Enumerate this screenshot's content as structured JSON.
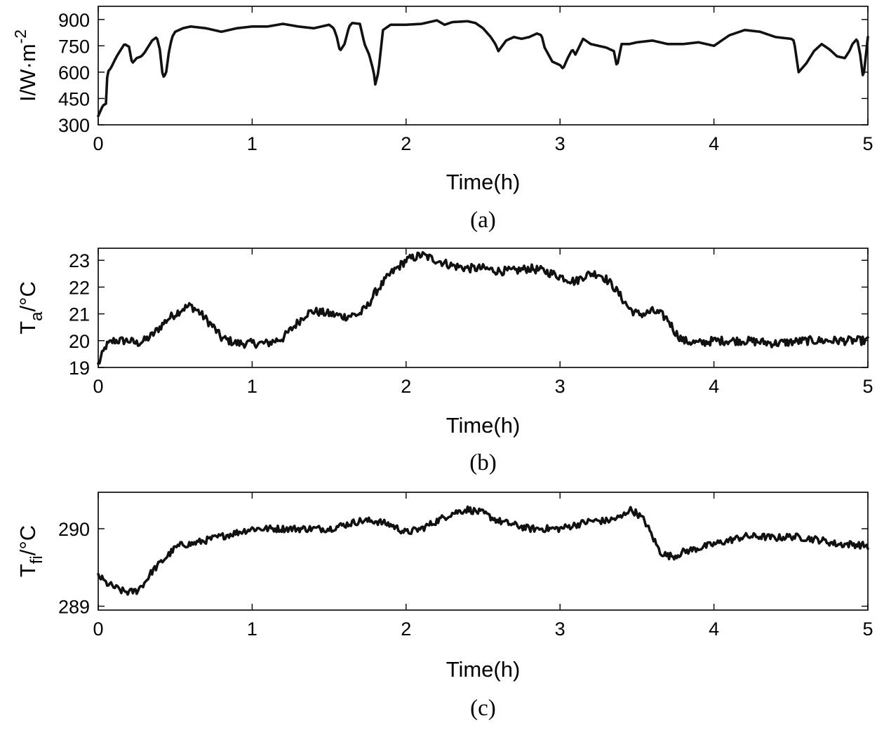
{
  "figure": {
    "background": "#ffffff",
    "line_color": "#111111"
  },
  "chart_data": [
    {
      "type": "line",
      "panel_label": "(a)",
      "xlabel": "Time(h)",
      "ylabel": "I/W·m",
      "ylabel_superscript": "-2",
      "xlim": [
        0,
        5
      ],
      "ylim": [
        300,
        975
      ],
      "xticks": [
        0,
        1,
        2,
        3,
        4,
        5
      ],
      "yticks": [
        300,
        450,
        600,
        750,
        900
      ],
      "grid": false,
      "noise": 0,
      "series": [
        {
          "x": [
            0,
            0.03,
            0.05,
            0.06,
            0.08,
            0.12,
            0.17,
            0.2,
            0.22,
            0.25,
            0.28,
            0.3,
            0.35,
            0.38,
            0.4,
            0.42,
            0.44,
            0.46,
            0.48,
            0.5,
            0.55,
            0.6,
            0.7,
            0.8,
            0.85,
            0.9,
            1.0,
            1.1,
            1.2,
            1.3,
            1.4,
            1.5,
            1.53,
            1.55,
            1.57,
            1.6,
            1.63,
            1.65,
            1.7,
            1.73,
            1.76,
            1.79,
            1.8,
            1.82,
            1.85,
            1.9,
            2.0,
            2.1,
            2.2,
            2.25,
            2.3,
            2.4,
            2.45,
            2.5,
            2.55,
            2.58,
            2.6,
            2.65,
            2.7,
            2.75,
            2.8,
            2.85,
            2.88,
            2.9,
            2.95,
            3.0,
            3.02,
            3.05,
            3.08,
            3.1,
            3.15,
            3.2,
            3.3,
            3.35,
            3.37,
            3.4,
            3.45,
            3.5,
            3.6,
            3.7,
            3.8,
            3.9,
            4.0,
            4.1,
            4.2,
            4.3,
            4.4,
            4.5,
            4.52,
            4.55,
            4.6,
            4.65,
            4.7,
            4.75,
            4.8,
            4.85,
            4.88,
            4.9,
            4.93,
            4.95,
            4.97,
            5.0
          ],
          "y": [
            350,
            410,
            420,
            600,
            620,
            690,
            760,
            745,
            650,
            680,
            690,
            710,
            780,
            800,
            730,
            570,
            590,
            720,
            800,
            830,
            850,
            860,
            850,
            830,
            840,
            850,
            860,
            860,
            875,
            860,
            850,
            870,
            850,
            800,
            720,
            760,
            860,
            880,
            875,
            760,
            700,
            600,
            530,
            600,
            840,
            870,
            870,
            875,
            895,
            870,
            885,
            890,
            880,
            850,
            800,
            760,
            720,
            780,
            800,
            790,
            800,
            820,
            810,
            740,
            660,
            640,
            620,
            680,
            730,
            700,
            790,
            760,
            740,
            720,
            630,
            760,
            760,
            770,
            780,
            760,
            760,
            770,
            750,
            810,
            840,
            830,
            800,
            790,
            780,
            600,
            650,
            720,
            760,
            730,
            690,
            680,
            720,
            760,
            790,
            700,
            560,
            800
          ]
        }
      ]
    },
    {
      "type": "line",
      "panel_label": "(b)",
      "xlabel": "Time(h)",
      "ylabel": "T",
      "ylabel_subscript": "a",
      "ylabel_suffix": "/°C",
      "xlim": [
        0,
        5
      ],
      "ylim": [
        19,
        23.45
      ],
      "xticks": [
        0,
        1,
        2,
        3,
        4,
        5
      ],
      "yticks": [
        19,
        20,
        21,
        22,
        23
      ],
      "grid": false,
      "noise": 0.16,
      "series": [
        {
          "x": [
            0,
            0.05,
            0.1,
            0.15,
            0.2,
            0.25,
            0.3,
            0.35,
            0.4,
            0.45,
            0.5,
            0.55,
            0.6,
            0.65,
            0.7,
            0.75,
            0.8,
            0.9,
            1.0,
            1.1,
            1.15,
            1.2,
            1.25,
            1.3,
            1.35,
            1.4,
            1.5,
            1.6,
            1.7,
            1.75,
            1.8,
            1.9,
            2.0,
            2.1,
            2.2,
            2.3,
            2.4,
            2.5,
            2.6,
            2.7,
            2.8,
            2.9,
            3.0,
            3.05,
            3.1,
            3.15,
            3.2,
            3.25,
            3.3,
            3.35,
            3.4,
            3.45,
            3.5,
            3.55,
            3.6,
            3.65,
            3.7,
            3.75,
            3.8,
            3.9,
            4.0,
            4.2,
            4.4,
            4.6,
            4.8,
            5.0
          ],
          "y": [
            19.1,
            19.8,
            20.0,
            20.0,
            20.0,
            19.9,
            20.0,
            20.2,
            20.5,
            20.8,
            21.0,
            21.2,
            21.3,
            21.1,
            20.8,
            20.5,
            20.1,
            19.9,
            19.9,
            19.9,
            20.0,
            20.1,
            20.4,
            20.7,
            21.0,
            21.1,
            21.0,
            20.9,
            21.0,
            21.3,
            21.8,
            22.5,
            23.0,
            23.2,
            23.0,
            22.8,
            22.7,
            22.7,
            22.6,
            22.6,
            22.7,
            22.6,
            22.4,
            22.3,
            22.2,
            22.4,
            22.5,
            22.5,
            22.3,
            22.0,
            21.6,
            21.2,
            21.0,
            21.0,
            21.1,
            21.0,
            20.8,
            20.3,
            20.0,
            19.9,
            20.0,
            20.0,
            19.9,
            20.0,
            20.0,
            20.0
          ]
        }
      ]
    },
    {
      "type": "line",
      "panel_label": "(c)",
      "xlabel": "Time(h)",
      "ylabel": "T",
      "ylabel_subscript": "fi",
      "ylabel_suffix": "/°C",
      "xlim": [
        0,
        5
      ],
      "ylim": [
        288.95,
        290.47
      ],
      "xticks": [
        0,
        1,
        2,
        3,
        4,
        5
      ],
      "yticks": [
        289,
        290
      ],
      "grid": false,
      "noise": 0.045,
      "series": [
        {
          "x": [
            0,
            0.05,
            0.1,
            0.15,
            0.2,
            0.25,
            0.3,
            0.35,
            0.4,
            0.45,
            0.5,
            0.55,
            0.6,
            0.7,
            0.8,
            0.9,
            1.0,
            1.2,
            1.4,
            1.5,
            1.6,
            1.7,
            1.8,
            1.9,
            2.0,
            2.1,
            2.2,
            2.3,
            2.4,
            2.5,
            2.6,
            2.7,
            2.8,
            2.9,
            3.0,
            3.1,
            3.2,
            3.3,
            3.4,
            3.45,
            3.5,
            3.55,
            3.6,
            3.65,
            3.7,
            3.75,
            3.8,
            3.9,
            4.0,
            4.1,
            4.2,
            4.3,
            4.4,
            4.5,
            4.6,
            4.7,
            4.8,
            4.9,
            5.0
          ],
          "y": [
            289.4,
            289.3,
            289.25,
            289.2,
            289.18,
            289.2,
            289.3,
            289.45,
            289.55,
            289.65,
            289.75,
            289.8,
            289.8,
            289.85,
            289.9,
            289.95,
            290.0,
            290.0,
            290.0,
            290.0,
            290.05,
            290.1,
            290.1,
            290.05,
            289.95,
            290.0,
            290.1,
            290.2,
            290.25,
            290.2,
            290.1,
            290.05,
            290.0,
            290.0,
            290.0,
            290.05,
            290.1,
            290.1,
            290.15,
            290.25,
            290.2,
            290.1,
            289.9,
            289.7,
            289.65,
            289.65,
            289.7,
            289.75,
            289.8,
            289.85,
            289.9,
            289.9,
            289.88,
            289.9,
            289.88,
            289.85,
            289.8,
            289.8,
            289.78
          ]
        }
      ]
    }
  ]
}
